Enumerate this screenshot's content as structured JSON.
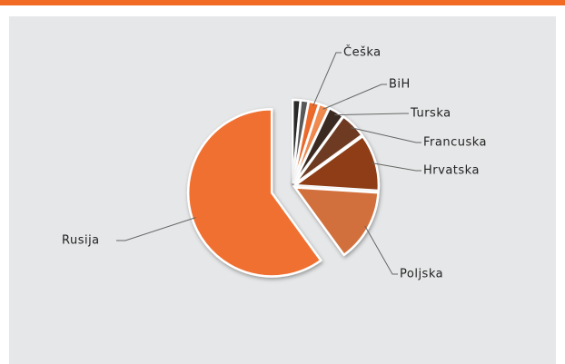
{
  "chart_data": {
    "type": "pie",
    "categories": [
      null,
      null,
      "Češka",
      "BiH",
      "Turska",
      "Francuska",
      "Hrvatska",
      "Poljska",
      "Rusija"
    ],
    "values": [
      1.5,
      1.5,
      2,
      2,
      3,
      5,
      11,
      14,
      60
    ],
    "colors": [
      "#2a2a2a",
      "#5a5a5a",
      "#ee6a2a",
      "#f08a50",
      "#3b2a22",
      "#6e3a22",
      "#8e3c14",
      "#d2703e",
      "#f07030"
    ]
  }
}
